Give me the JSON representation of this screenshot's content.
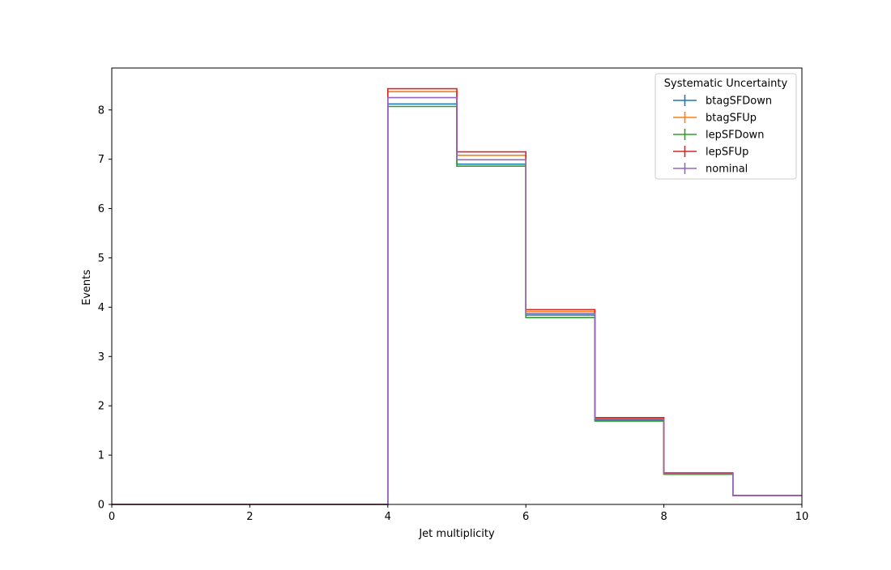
{
  "chart_data": {
    "type": "line",
    "subtype": "step-histogram",
    "title": "",
    "xlabel": "Jet multiplicity",
    "ylabel": "Events",
    "xlim": [
      0,
      10
    ],
    "ylim": [
      0,
      8.85
    ],
    "xticks": [
      0,
      2,
      4,
      6,
      8,
      10
    ],
    "yticks": [
      0,
      1,
      2,
      3,
      4,
      5,
      6,
      7,
      8
    ],
    "bin_edges": [
      0,
      1,
      2,
      3,
      4,
      5,
      6,
      7,
      8,
      9,
      10
    ],
    "grid": false,
    "legend_placement": "top-right",
    "legend_title": "Systematic Uncertainty",
    "series": [
      {
        "name": "btagSFDown",
        "color": "#1f77b4",
        "values": [
          0,
          0,
          0,
          0,
          8.12,
          6.9,
          3.84,
          1.71,
          0.62,
          0.18
        ]
      },
      {
        "name": "btagSFUp",
        "color": "#ff7f0e",
        "values": [
          0,
          0,
          0,
          0,
          8.37,
          7.08,
          3.91,
          1.74,
          0.63,
          0.18
        ]
      },
      {
        "name": "lepSFDown",
        "color": "#2ca02c",
        "values": [
          0,
          0,
          0,
          0,
          8.07,
          6.86,
          3.79,
          1.69,
          0.61,
          0.18
        ]
      },
      {
        "name": "lepSFUp",
        "color": "#d62728",
        "values": [
          0,
          0,
          0,
          0,
          8.43,
          7.15,
          3.95,
          1.76,
          0.64,
          0.18
        ]
      },
      {
        "name": "nominal",
        "color": "#9467bd",
        "values": [
          0,
          0,
          0,
          0,
          8.25,
          6.99,
          3.87,
          1.73,
          0.62,
          0.18
        ]
      }
    ]
  }
}
